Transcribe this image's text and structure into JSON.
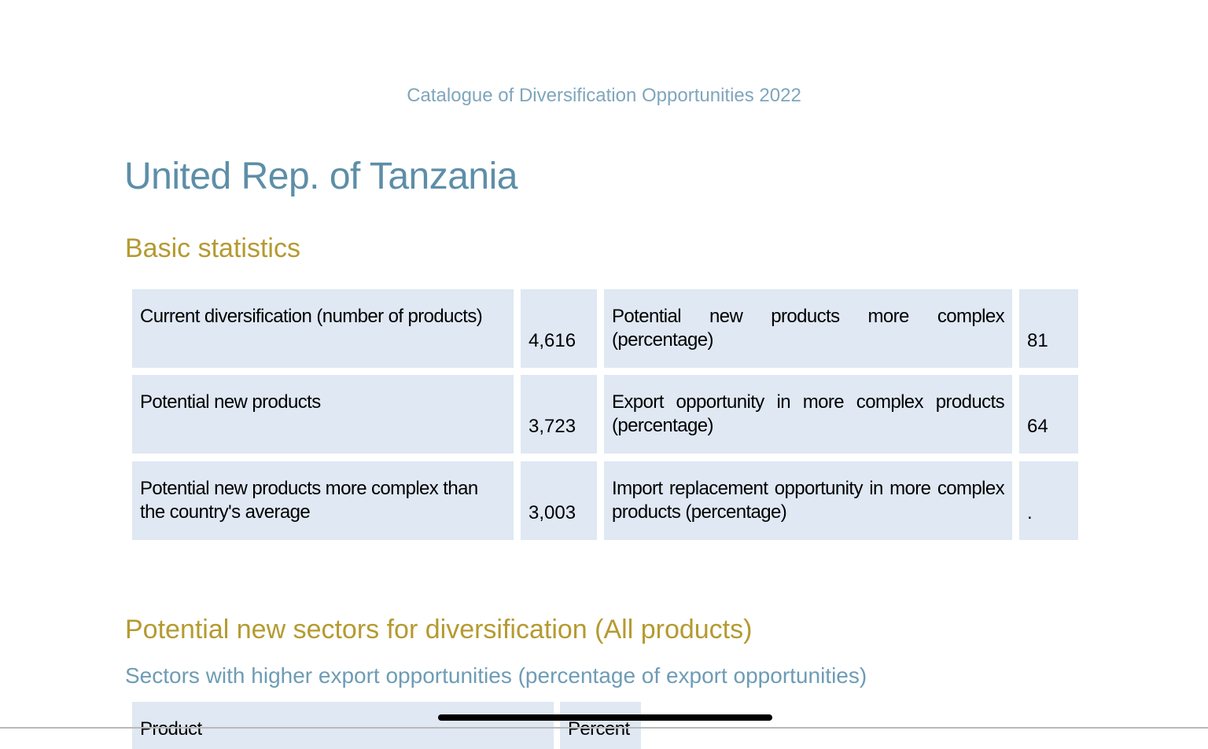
{
  "header": {
    "title": "Catalogue of Diversification Opportunities 2022"
  },
  "country": "United Rep. of Tanzania",
  "basic_statistics": {
    "heading": "Basic statistics",
    "rows": [
      [
        {
          "label": "Current diversification (number of products)",
          "value": "4,616"
        },
        {
          "label": "Potential new products more complex (percentage)",
          "value": "81"
        }
      ],
      [
        {
          "label": "Potential new products",
          "value": "3,723"
        },
        {
          "label": "Export opportunity in more complex products (percentage)",
          "value": "64"
        }
      ],
      [
        {
          "label": "Potential new products more complex than the country's average",
          "value": "3,003"
        },
        {
          "label": "Import replacement opportunity in more complex products (percentage)",
          "value": "."
        }
      ]
    ]
  },
  "sectors": {
    "heading": "Potential new sectors for diversification (All products)",
    "subheading": "Sectors with higher export opportunities (percentage of export opportunities)",
    "table": {
      "columns": [
        "Product",
        "Percent"
      ]
    }
  }
}
